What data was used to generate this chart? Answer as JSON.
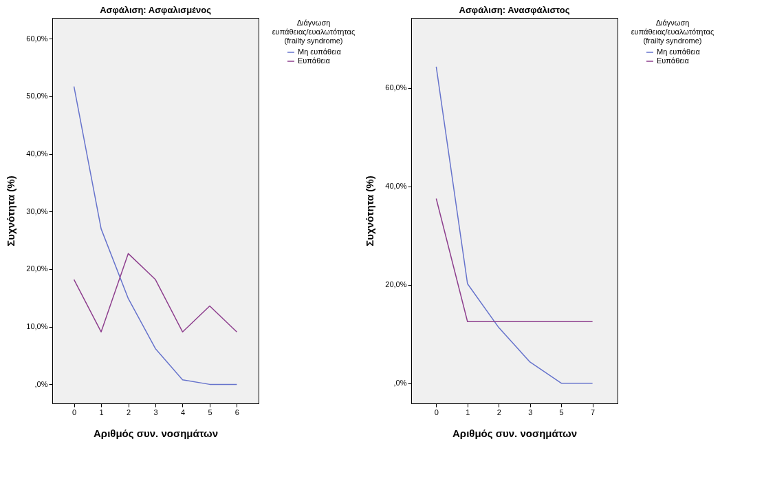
{
  "chart_data": [
    {
      "type": "line",
      "title": "Ασφάλιση: Ασφαλισμένος",
      "xlabel": "Αριθμός συν. νοσημάτων",
      "ylabel": "Συχνότητα (%)",
      "legend_title": "Διάγνωση\nευπάθειας/ευαλωτότητας\n(frailty syndrome)",
      "categories": [
        "0",
        "1",
        "2",
        "3",
        "4",
        "5",
        "6"
      ],
      "series": [
        {
          "name": "Μη ευπάθεια",
          "color": "#6673cc",
          "values": [
            51.7,
            27.0,
            14.9,
            6.2,
            0.8,
            0,
            0
          ]
        },
        {
          "name": "Ευπάθεια",
          "color": "#8e3f8e",
          "values": [
            18.2,
            9.1,
            22.7,
            18.2,
            9.1,
            13.6,
            9.1
          ]
        }
      ],
      "ylim": [
        -3.3,
        63.6
      ],
      "yticks": [
        {
          "value": 0,
          "label": ",0%"
        },
        {
          "value": 10,
          "label": "10,0%"
        },
        {
          "value": 20,
          "label": "20,0%"
        },
        {
          "value": 30,
          "label": "30,0%"
        },
        {
          "value": 40,
          "label": "40,0%"
        },
        {
          "value": 50,
          "label": "50,0%"
        },
        {
          "value": 60,
          "label": "60,0%"
        }
      ],
      "legend": "top right",
      "line_style": "solid"
    },
    {
      "type": "line",
      "title": "Ασφάλιση: Ανασφάλιστος",
      "xlabel": "Αριθμός συν. νοσημάτων",
      "ylabel": "Συχνότητα (%)",
      "legend_title": "Διάγνωση\nευπάθειας/ευαλωτότητας\n(frailty syndrome)",
      "categories": [
        "0",
        "1",
        "2",
        "3",
        "5",
        "7"
      ],
      "series": [
        {
          "name": "Μη ευπάθεια",
          "color": "#6673cc",
          "values": [
            64.3,
            20.2,
            11.3,
            4.3,
            0,
            0
          ]
        },
        {
          "name": "Ευπάθεια",
          "color": "#8e3f8e",
          "values": [
            37.5,
            12.5,
            12.5,
            12.5,
            12.5,
            12.5
          ]
        }
      ],
      "ylim": [
        -4.1,
        74.2
      ],
      "yticks": [
        {
          "value": 0,
          "label": ",0%"
        },
        {
          "value": 20,
          "label": "20,0%"
        },
        {
          "value": 40,
          "label": "40,0%"
        },
        {
          "value": 60,
          "label": "60,0%"
        }
      ],
      "legend": "top right",
      "line_style": "solid"
    }
  ]
}
